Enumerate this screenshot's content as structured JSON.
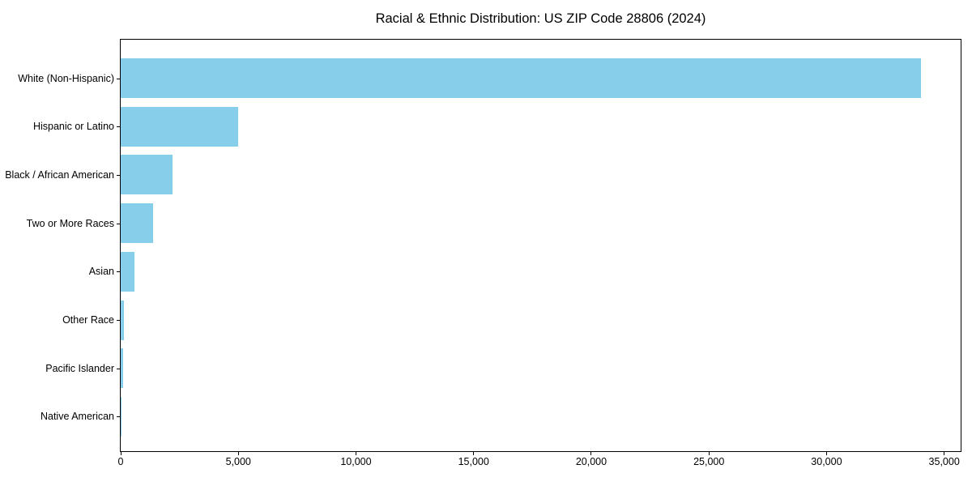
{
  "title": "Racial & Ethnic Distribution: US ZIP Code 28806 (2024)",
  "chart_data": {
    "type": "bar",
    "orientation": "horizontal",
    "title": "Racial & Ethnic Distribution: US ZIP Code 28806 (2024)",
    "categories": [
      "White (Non-Hispanic)",
      "Hispanic or Latino",
      "Black / African American",
      "Two or More Races",
      "Asian",
      "Other Race",
      "Pacific Islander",
      "Native American"
    ],
    "values": [
      34000,
      5000,
      2200,
      1375,
      600,
      150,
      100,
      25
    ],
    "xlabel": "",
    "ylabel": "",
    "xlim": [
      0,
      35700
    ],
    "xticks": [
      0,
      5000,
      10000,
      15000,
      20000,
      25000,
      30000,
      35000
    ],
    "xtick_labels": [
      "0",
      "5,000",
      "10,000",
      "15,000",
      "20,000",
      "25,000",
      "30,000",
      "35,000"
    ],
    "bar_color": "#87CEEB",
    "axis_color": "#000000",
    "text_color": "#000000",
    "grid": false,
    "legend_position": "none"
  }
}
